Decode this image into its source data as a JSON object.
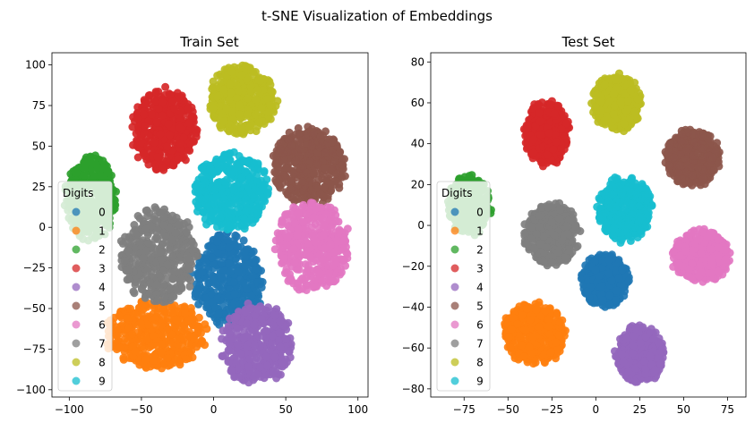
{
  "chart_data": {
    "suptitle": "t-SNE Visualization of Embeddings",
    "type": "scatter",
    "colors": [
      "#1f77b4",
      "#ff7f0e",
      "#2ca02c",
      "#d62728",
      "#9467bd",
      "#8c564b",
      "#e377c2",
      "#7f7f7f",
      "#bcbd22",
      "#17becf"
    ],
    "legend": {
      "title": "Digits",
      "labels": [
        "0",
        "1",
        "2",
        "3",
        "4",
        "5",
        "6",
        "7",
        "8",
        "9"
      ],
      "placement": "center-left"
    },
    "panels": [
      {
        "title": "Train Set",
        "xlim": [
          -112,
          107
        ],
        "ylim": [
          -104.5,
          107.5
        ],
        "xticks": [
          -100,
          -50,
          0,
          50,
          100
        ],
        "yticks": [
          -100,
          -75,
          -50,
          -25,
          0,
          25,
          50,
          75,
          100
        ],
        "clusters": [
          {
            "label": "0",
            "center": [
              10,
              -32
            ],
            "spread": [
              25,
              29
            ]
          },
          {
            "label": "1",
            "center": [
              -40,
              -66
            ],
            "spread": [
              36,
              21
            ]
          },
          {
            "label": "2",
            "center": [
              -85,
              18
            ],
            "spread": [
              18,
              26
            ]
          },
          {
            "label": "3",
            "center": [
              -34,
              60
            ],
            "spread": [
              23,
              26
            ]
          },
          {
            "label": "4",
            "center": [
              30,
              -72
            ],
            "spread": [
              25,
              25
            ]
          },
          {
            "label": "5",
            "center": [
              66,
              38
            ],
            "spread": [
              26,
              24
            ]
          },
          {
            "label": "6",
            "center": [
              68,
              -12
            ],
            "spread": [
              26,
              28
            ]
          },
          {
            "label": "7",
            "center": [
              -38,
              -18
            ],
            "spread": [
              27,
              30
            ]
          },
          {
            "label": "8",
            "center": [
              20,
              78
            ],
            "spread": [
              24,
              22
            ]
          },
          {
            "label": "9",
            "center": [
              12,
              22
            ],
            "spread": [
              26,
              25
            ]
          }
        ]
      },
      {
        "title": "Test Set",
        "xlim": [
          -94,
          85.5
        ],
        "ylim": [
          -84,
          84.5
        ],
        "xticks": [
          -75,
          -50,
          -25,
          0,
          25,
          50,
          75
        ],
        "yticks": [
          -80,
          -60,
          -40,
          -20,
          0,
          20,
          40,
          60,
          80
        ],
        "clusters": [
          {
            "label": "0",
            "center": [
              5,
              -27
            ],
            "spread": [
              14,
              13
            ]
          },
          {
            "label": "1",
            "center": [
              -35,
              -53
            ],
            "spread": [
              19,
              15
            ]
          },
          {
            "label": "2",
            "center": [
              -72,
              10
            ],
            "spread": [
              12,
              15
            ]
          },
          {
            "label": "3",
            "center": [
              -28,
              45
            ],
            "spread": [
              13,
              16
            ]
          },
          {
            "label": "4",
            "center": [
              25,
              -63
            ],
            "spread": [
              14,
              14
            ]
          },
          {
            "label": "5",
            "center": [
              55,
              33
            ],
            "spread": [
              16,
              14
            ]
          },
          {
            "label": "6",
            "center": [
              60,
              -15
            ],
            "spread": [
              17,
              13
            ]
          },
          {
            "label": "7",
            "center": [
              -25,
              -4
            ],
            "spread": [
              16,
              16
            ]
          },
          {
            "label": "8",
            "center": [
              12,
              60
            ],
            "spread": [
              14,
              14
            ]
          },
          {
            "label": "9",
            "center": [
              16,
              8
            ],
            "spread": [
              16,
              16
            ]
          }
        ]
      }
    ]
  }
}
